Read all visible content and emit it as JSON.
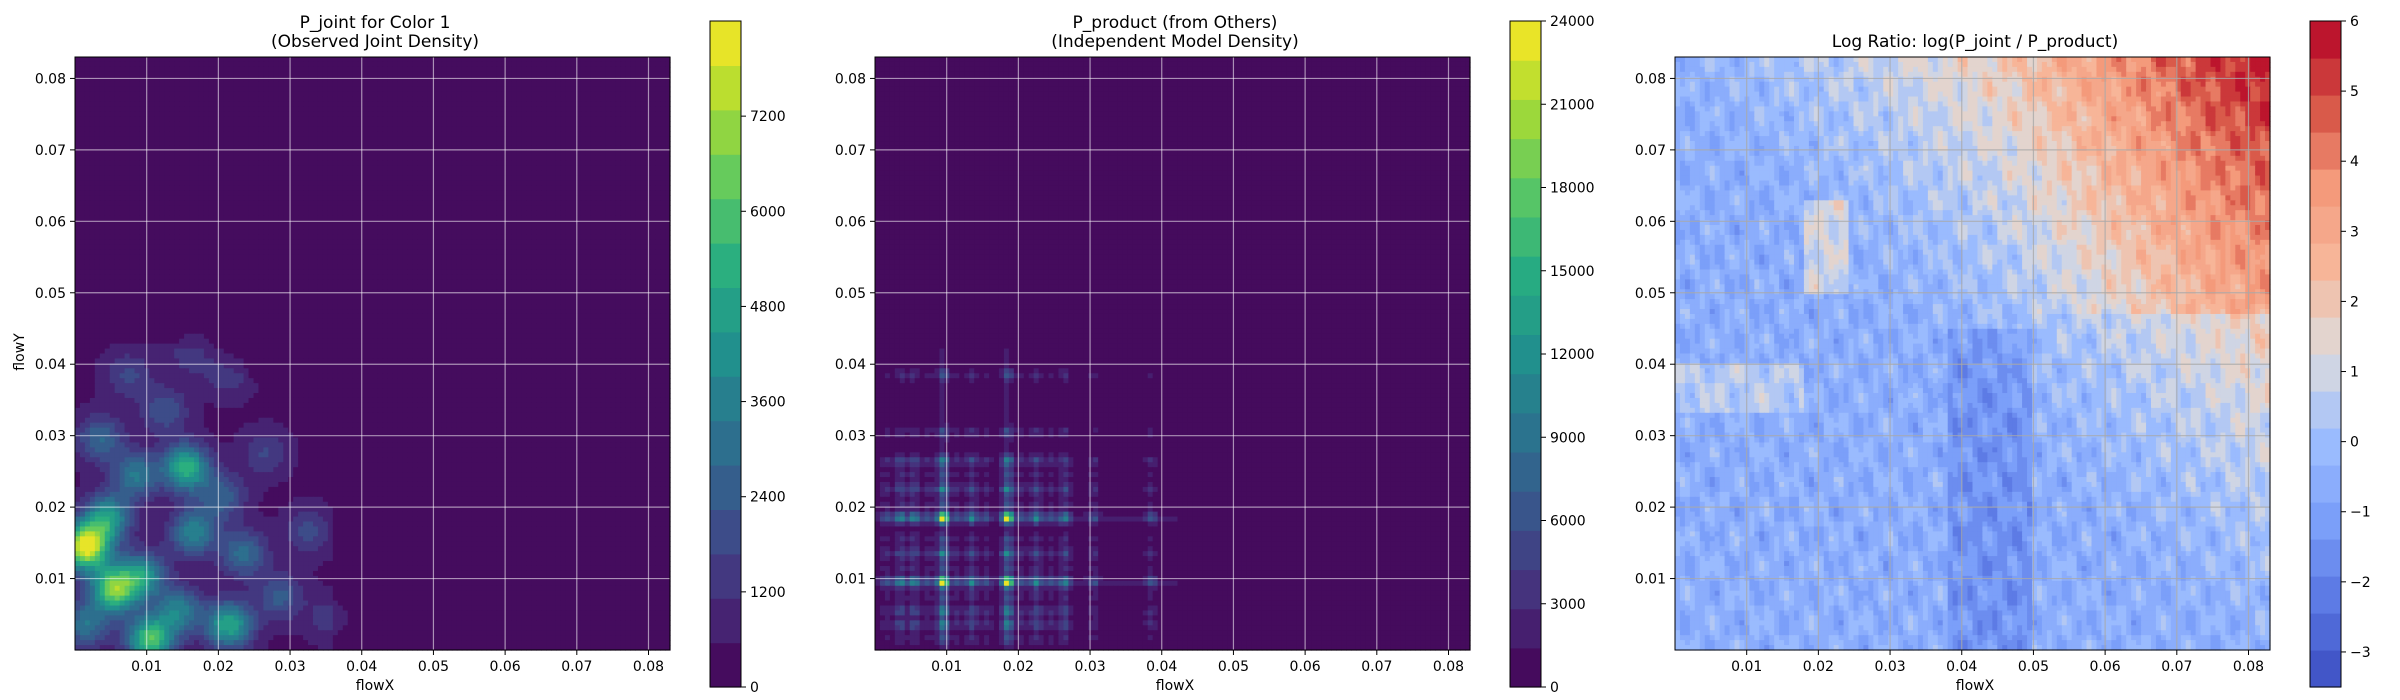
{
  "chart_data": [
    {
      "type": "heatmap",
      "name": "joint",
      "title": "P_joint for Color 1",
      "subtitle": "(Observed Joint Density)",
      "xlabel": "flowX",
      "ylabel": "flowY",
      "xlim": [
        0,
        0.083
      ],
      "ylim": [
        0,
        0.083
      ],
      "xticks": [
        "0.01",
        "0.02",
        "0.03",
        "0.04",
        "0.05",
        "0.06",
        "0.07",
        "0.08"
      ],
      "yticks": [
        "0.01",
        "0.02",
        "0.03",
        "0.04",
        "0.05",
        "0.06",
        "0.07",
        "0.08"
      ],
      "grid": true,
      "colormap": "viridis",
      "colorbar": {
        "min": 0,
        "max": 8400,
        "ticks": [
          "0",
          "1200",
          "2400",
          "3600",
          "4800",
          "6000",
          "7200"
        ]
      },
      "hotspots": [
        {
          "x": 0.0015,
          "y": 0.0145,
          "value": 8000
        },
        {
          "x": 0.0045,
          "y": 0.0185,
          "value": 4200
        },
        {
          "x": 0.0055,
          "y": 0.0085,
          "value": 6200
        },
        {
          "x": 0.0095,
          "y": 0.0105,
          "value": 3800
        },
        {
          "x": 0.0105,
          "y": 0.0015,
          "value": 5600
        },
        {
          "x": 0.0155,
          "y": 0.0255,
          "value": 5000
        },
        {
          "x": 0.0165,
          "y": 0.0165,
          "value": 3400
        },
        {
          "x": 0.0215,
          "y": 0.0035,
          "value": 4600
        },
        {
          "x": 0.0145,
          "y": 0.0055,
          "value": 3200
        },
        {
          "x": 0.0235,
          "y": 0.0135,
          "value": 2600
        },
        {
          "x": 0.0035,
          "y": 0.0295,
          "value": 2400
        },
        {
          "x": 0.0285,
          "y": 0.0075,
          "value": 2000
        },
        {
          "x": 0.0125,
          "y": 0.0335,
          "value": 1800
        },
        {
          "x": 0.0205,
          "y": 0.0215,
          "value": 2200
        },
        {
          "x": 0.0325,
          "y": 0.0165,
          "value": 1500
        },
        {
          "x": 0.0075,
          "y": 0.0385,
          "value": 1400
        },
        {
          "x": 0.0165,
          "y": 0.0415,
          "value": 1200
        },
        {
          "x": 0.0265,
          "y": 0.0275,
          "value": 1300
        },
        {
          "x": 0.0355,
          "y": 0.0045,
          "value": 1000
        },
        {
          "x": 0.0215,
          "y": 0.0385,
          "value": 1100
        },
        {
          "x": 0.0015,
          "y": 0.0035,
          "value": 2800
        },
        {
          "x": 0.0085,
          "y": 0.0245,
          "value": 3000
        }
      ]
    },
    {
      "type": "heatmap",
      "name": "product",
      "title": "P_product (from Others)",
      "subtitle": "(Independent Model Density)",
      "xlabel": "flowX",
      "ylabel": "",
      "xlim": [
        0,
        0.083
      ],
      "ylim": [
        0,
        0.083
      ],
      "xticks": [
        "0.01",
        "0.02",
        "0.03",
        "0.04",
        "0.05",
        "0.06",
        "0.07",
        "0.08"
      ],
      "yticks": [
        "0.01",
        "0.02",
        "0.03",
        "0.04",
        "0.05",
        "0.06",
        "0.07",
        "0.08"
      ],
      "grid": true,
      "colormap": "viridis",
      "colorbar": {
        "min": 0,
        "max": 24000,
        "ticks": [
          "0",
          "3000",
          "6000",
          "9000",
          "12000",
          "15000",
          "18000",
          "21000",
          "24000"
        ]
      },
      "bright_lines": [
        0.0095,
        0.0185
      ],
      "mid_lines": [
        0.0035,
        0.0055,
        0.0135,
        0.0225,
        0.0265
      ],
      "faint_lines": [
        0.0015,
        0.0075,
        0.0115,
        0.0155,
        0.0205,
        0.0245,
        0.0305,
        0.0385
      ],
      "peak_value": 23000
    },
    {
      "type": "heatmap",
      "name": "ratio",
      "title": "Log Ratio: log(P_joint / P_product)",
      "xlabel": "flowX",
      "ylabel": "",
      "xlim": [
        0,
        0.083
      ],
      "ylim": [
        0,
        0.083
      ],
      "xticks": [
        "0.01",
        "0.02",
        "0.03",
        "0.04",
        "0.05",
        "0.06",
        "0.07",
        "0.08"
      ],
      "yticks": [
        "0.01",
        "0.02",
        "0.03",
        "0.04",
        "0.05",
        "0.06",
        "0.07",
        "0.08"
      ],
      "grid": true,
      "colormap": "coolwarm",
      "colorbar": {
        "min": -3.5,
        "max": 6,
        "ticks": [
          "−3",
          "−2",
          "−1",
          "0",
          "1",
          "2",
          "3",
          "4",
          "5",
          "6"
        ]
      },
      "corner_value": 4.5
    }
  ]
}
